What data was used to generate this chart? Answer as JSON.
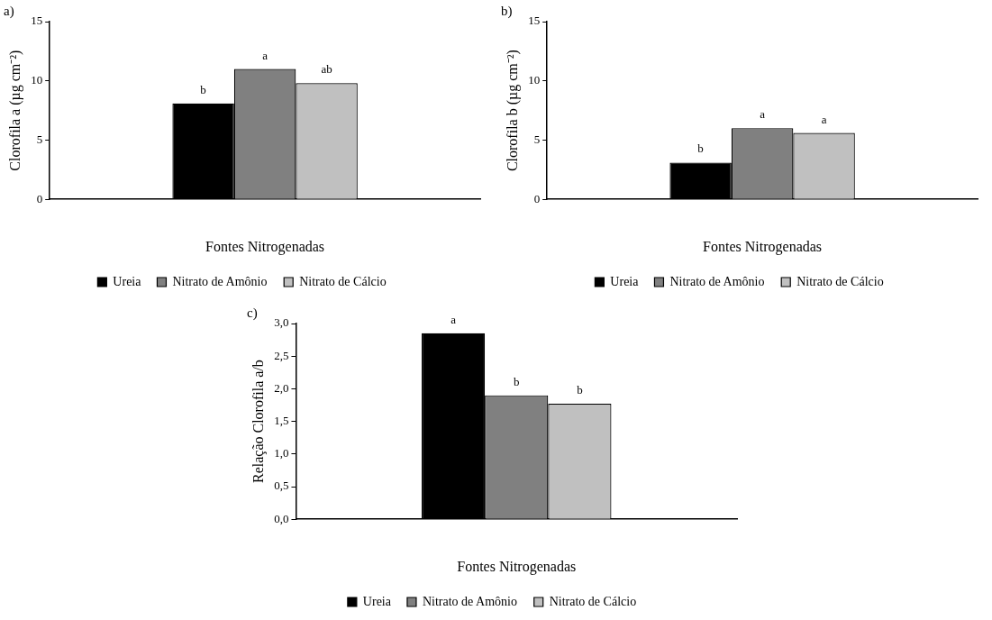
{
  "chart_data": [
    {
      "type": "bar",
      "title": "a)",
      "xlabel": "Fontes Nitrogenadas",
      "ylabel": "Clorofila a (µg cm⁻²)",
      "categories": [
        null
      ],
      "series": [
        {
          "name": "Ureia",
          "color": "#000000",
          "values": [
            8.1
          ],
          "value_labels": [
            "b"
          ]
        },
        {
          "name": "Nitrato de Amônio",
          "color": "#808080",
          "values": [
            11.0
          ],
          "value_labels": [
            "a"
          ]
        },
        {
          "name": "Nitrato de Cálcio",
          "color": "#c0c0c0",
          "values": [
            9.8
          ],
          "value_labels": [
            "ab"
          ]
        }
      ],
      "ylim": [
        0,
        15
      ],
      "yticks": [
        0,
        5,
        10,
        15
      ],
      "grid": false,
      "legend": "bottom"
    },
    {
      "type": "bar",
      "title": "b)",
      "xlabel": "Fontes Nitrogenadas",
      "ylabel": "Clorofila b (µg cm⁻²)",
      "categories": [
        null
      ],
      "series": [
        {
          "name": "Ureia",
          "color": "#000000",
          "values": [
            3.1
          ],
          "value_labels": [
            "b"
          ]
        },
        {
          "name": "Nitrato de Amônio",
          "color": "#808080",
          "values": [
            6.0
          ],
          "value_labels": [
            "a"
          ]
        },
        {
          "name": "Nitrato de Cálcio",
          "color": "#c0c0c0",
          "values": [
            5.6
          ],
          "value_labels": [
            "a"
          ]
        }
      ],
      "ylim": [
        0,
        15
      ],
      "yticks": [
        0,
        5,
        10,
        15
      ],
      "grid": false,
      "legend": "bottom"
    },
    {
      "type": "bar",
      "title": "c)",
      "xlabel": "Fontes Nitrogenadas",
      "ylabel": "Relação Clorofila a/b",
      "categories": [
        null
      ],
      "series": [
        {
          "name": "Ureia",
          "color": "#000000",
          "values": [
            2.85
          ],
          "value_labels": [
            "a"
          ]
        },
        {
          "name": "Nitrato de Amônio",
          "color": "#808080",
          "values": [
            1.9
          ],
          "value_labels": [
            "b"
          ]
        },
        {
          "name": "Nitrato de Cálcio",
          "color": "#c0c0c0",
          "values": [
            1.77
          ],
          "value_labels": [
            "b"
          ]
        }
      ],
      "ylim": [
        0,
        3
      ],
      "yticks": [
        {
          "value": 0,
          "label": "0,0"
        },
        {
          "value": 0.5,
          "label": "0,5"
        },
        {
          "value": 1,
          "label": "1,0"
        },
        {
          "value": 1.5,
          "label": "1,5"
        },
        {
          "value": 2,
          "label": "2,0"
        },
        {
          "value": 2.5,
          "label": "2,5"
        },
        {
          "value": 3,
          "label": "3,0"
        }
      ],
      "grid": false,
      "legend": "bottom"
    }
  ]
}
